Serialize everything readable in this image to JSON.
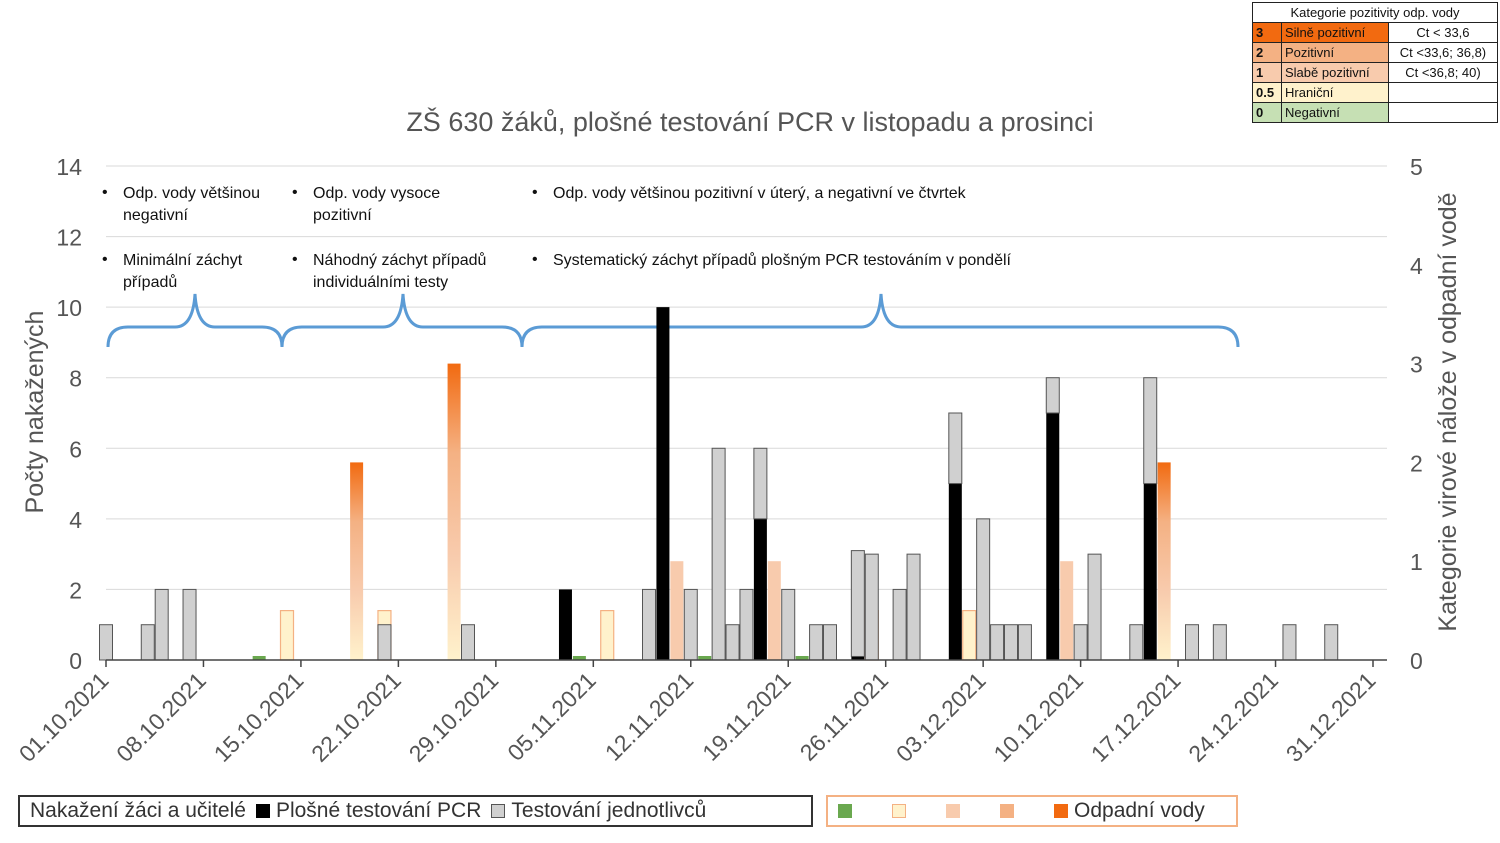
{
  "chart_data": {
    "type": "bar",
    "title": "ZŠ 630 žáků, plošné testování PCR v listopadu a prosinci",
    "ylabel": "Počty nakažených",
    "y2label": "Kategorie virové nálože v odpadní vodě",
    "ylim": [
      0,
      14
    ],
    "y2lim": [
      0,
      5
    ],
    "yticks": [
      "0",
      "2",
      "4",
      "6",
      "8",
      "10",
      "12",
      "14"
    ],
    "y2ticks": [
      "0",
      "1",
      "2",
      "3",
      "4",
      "5"
    ],
    "xlim": [
      "01.10.2021",
      "31.12.2021"
    ],
    "xticks": [
      "01.10.2021",
      "08.10.2021",
      "15.10.2021",
      "22.10.2021",
      "29.10.2021",
      "05.11.2021",
      "12.11.2021",
      "19.11.2021",
      "26.11.2021",
      "03.12.2021",
      "10.12.2021",
      "17.12.2021",
      "24.12.2021",
      "31.12.2021"
    ],
    "grid": "horizontal",
    "infected": [
      {
        "date": "01.10.2021",
        "pcr": 0,
        "individual": 1
      },
      {
        "date": "04.10.2021",
        "pcr": 0,
        "individual": 1
      },
      {
        "date": "05.10.2021",
        "pcr": 0,
        "individual": 2
      },
      {
        "date": "07.10.2021",
        "pcr": 0,
        "individual": 2
      },
      {
        "date": "21.10.2021",
        "pcr": 0,
        "individual": 1
      },
      {
        "date": "27.10.2021",
        "pcr": 0,
        "individual": 1
      },
      {
        "date": "03.11.2021",
        "pcr": 2,
        "individual": 0
      },
      {
        "date": "09.11.2021",
        "pcr": 0,
        "individual": 2
      },
      {
        "date": "10.11.2021",
        "pcr": 10,
        "individual": 0
      },
      {
        "date": "12.11.2021",
        "pcr": 0,
        "individual": 2
      },
      {
        "date": "14.11.2021",
        "pcr": 0,
        "individual": 6
      },
      {
        "date": "15.11.2021",
        "pcr": 0,
        "individual": 1
      },
      {
        "date": "16.11.2021",
        "pcr": 0,
        "individual": 2
      },
      {
        "date": "17.11.2021",
        "pcr": 4,
        "individual": 2
      },
      {
        "date": "19.11.2021",
        "pcr": 0,
        "individual": 2
      },
      {
        "date": "21.11.2021",
        "pcr": 0,
        "individual": 1
      },
      {
        "date": "22.11.2021",
        "pcr": 0,
        "individual": 1
      },
      {
        "date": "24.11.2021",
        "pcr": 0.1,
        "individual": 3
      },
      {
        "date": "25.11.2021",
        "pcr": 0,
        "individual": 3
      },
      {
        "date": "27.11.2021",
        "pcr": 0,
        "individual": 2
      },
      {
        "date": "28.11.2021",
        "pcr": 0,
        "individual": 3
      },
      {
        "date": "01.12.2021",
        "pcr": 5,
        "individual": 2
      },
      {
        "date": "03.12.2021",
        "pcr": 0,
        "individual": 4
      },
      {
        "date": "04.12.2021",
        "pcr": 0,
        "individual": 1
      },
      {
        "date": "05.12.2021",
        "pcr": 0,
        "individual": 1
      },
      {
        "date": "06.12.2021",
        "pcr": 0,
        "individual": 1
      },
      {
        "date": "08.12.2021",
        "pcr": 7,
        "individual": 1
      },
      {
        "date": "10.12.2021",
        "pcr": 0,
        "individual": 1
      },
      {
        "date": "11.12.2021",
        "pcr": 0,
        "individual": 3
      },
      {
        "date": "14.12.2021",
        "pcr": 0,
        "individual": 1
      },
      {
        "date": "15.12.2021",
        "pcr": 5,
        "individual": 3
      },
      {
        "date": "18.12.2021",
        "pcr": 0,
        "individual": 1
      },
      {
        "date": "20.12.2021",
        "pcr": 0,
        "individual": 1
      },
      {
        "date": "25.12.2021",
        "pcr": 0,
        "individual": 1
      },
      {
        "date": "28.12.2021",
        "pcr": 0,
        "individual": 1
      }
    ],
    "wastewater": [
      {
        "date": "01.10.2021",
        "category": 0
      },
      {
        "date": "05.10.2021",
        "category": 0
      },
      {
        "date": "07.10.2021",
        "category": 0
      },
      {
        "date": "12.10.2021",
        "category": 0
      },
      {
        "date": "14.10.2021",
        "category": 0.5
      },
      {
        "date": "19.10.2021",
        "category": 2
      },
      {
        "date": "21.10.2021",
        "category": 0.5
      },
      {
        "date": "26.10.2021",
        "category": 3
      },
      {
        "date": "04.11.2021",
        "category": 0
      },
      {
        "date": "06.11.2021",
        "category": 0.5
      },
      {
        "date": "11.11.2021",
        "category": 1
      },
      {
        "date": "13.11.2021",
        "category": 0
      },
      {
        "date": "18.11.2021",
        "category": 1
      },
      {
        "date": "20.11.2021",
        "category": 0
      },
      {
        "date": "25.11.2021",
        "category": 0.5
      },
      {
        "date": "27.11.2021",
        "category": 0
      },
      {
        "date": "02.12.2021",
        "category": 0.5
      },
      {
        "date": "04.12.2021",
        "category": 0
      },
      {
        "date": "09.12.2021",
        "category": 1
      },
      {
        "date": "11.12.2021",
        "category": 0
      },
      {
        "date": "16.12.2021",
        "category": 2
      },
      {
        "date": "18.12.2021",
        "category": 0
      }
    ]
  },
  "colors": {
    "pcr": "#000000",
    "individual": "#d0d0d0",
    "cat_0": "#6aa84f",
    "cat_05": "#fff2cc",
    "cat_1": "#f8cbad",
    "cat_2": "#f4b183",
    "cat_3": "#f26a10",
    "brace": "#5b9bd5"
  },
  "annotations": {
    "p1_a_l1": "Odp. vody většinou",
    "p1_a_l2": "negativní",
    "p1_b_l1": "Minimální záchyt",
    "p1_b_l2": "případů",
    "p2_a_l1": "Odp. vody vysoce",
    "p2_a_l2": "pozitivní",
    "p2_b_l1": "Náhodný záchyt případů",
    "p2_b_l2": "individuálními testy",
    "p3_a": "Odp. vody většinou pozitivní v úterý, a negativní ve čtvrtek",
    "p3_b": "Systematický záchyt případů plošným PCR testováním v pondělí",
    "bullet": "•"
  },
  "legend_infected": {
    "title": "Nakažení žáci a učitelé",
    "pcr": "Plošné testování PCR",
    "individual": "Testování jednotlivců"
  },
  "legend_wastewater": {
    "label": "Odpadní vody"
  },
  "category_table": {
    "header": "Kategorie pozitivity odp. vody",
    "rows": [
      {
        "num": "3",
        "name": "Silně pozitivní",
        "range": "Ct < 33,6"
      },
      {
        "num": "2",
        "name": "Pozitivní",
        "range": "Ct <33,6; 36,8)"
      },
      {
        "num": "1",
        "name": "Slabě pozitivní",
        "range": "Ct <36,8; 40)"
      },
      {
        "num": "0.5",
        "name": "Hraniční",
        "range": ""
      },
      {
        "num": "0",
        "name": "Negativní",
        "range": ""
      }
    ]
  }
}
